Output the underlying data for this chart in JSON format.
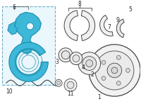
{
  "bg_color": "#ffffff",
  "parts_color": "#3db8d8",
  "parts_edge": "#1a8aaa",
  "line_color": "#444444",
  "label_color": "#222222",
  "label_fontsize": 5.5,
  "box_edge": "#6ab0cc",
  "box_face": "#eaf7fc"
}
